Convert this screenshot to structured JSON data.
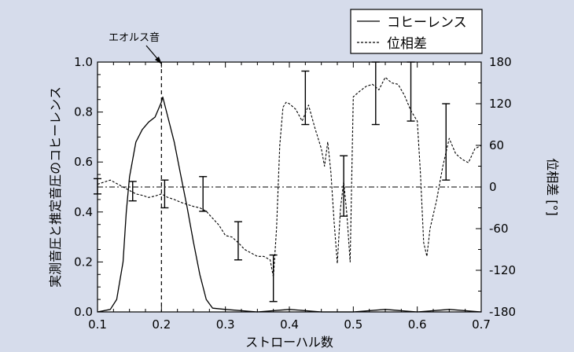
{
  "chart_data": {
    "type": "line",
    "xlabel": "ストローハル数",
    "ylabel": "実測音圧と推定音圧のコヒーレンス",
    "y2label": "位相差 [°]",
    "xlim": [
      0.1,
      0.7
    ],
    "ylim": [
      0.0,
      1.0
    ],
    "y2lim": [
      -180,
      180
    ],
    "xticks": [
      "0.1",
      "0.2",
      "0.3",
      "0.4",
      "0.5",
      "0.6",
      "0.7"
    ],
    "yticks": [
      "0.0",
      "0.2",
      "0.4",
      "0.6",
      "0.8",
      "1.0"
    ],
    "y2ticks": [
      "-180",
      "-120",
      "-60",
      "0",
      "60",
      "120",
      "180"
    ],
    "legend": {
      "position": "top-right",
      "entries": [
        "コヒーレンス",
        "位相差"
      ]
    },
    "annotation": {
      "text": "エオルス音",
      "x": 0.2
    },
    "reference_lines": {
      "vertical_dashed_x": 0.2,
      "horizontal_dashdot_y2": 0
    },
    "series": [
      {
        "name": "コヒーレンス",
        "axis": "left",
        "style": "solid",
        "x": [
          0.1,
          0.12,
          0.13,
          0.14,
          0.145,
          0.15,
          0.16,
          0.17,
          0.18,
          0.19,
          0.2,
          0.202,
          0.21,
          0.22,
          0.23,
          0.24,
          0.25,
          0.26,
          0.27,
          0.28,
          0.3,
          0.35,
          0.4,
          0.45,
          0.5,
          0.55,
          0.6,
          0.65,
          0.7
        ],
        "values": [
          0.0,
          0.01,
          0.05,
          0.2,
          0.4,
          0.54,
          0.68,
          0.73,
          0.76,
          0.78,
          0.84,
          0.86,
          0.78,
          0.68,
          0.55,
          0.42,
          0.28,
          0.15,
          0.05,
          0.015,
          0.01,
          0.0,
          0.01,
          0.0,
          0.0,
          0.01,
          0.0,
          0.01,
          0.0
        ]
      },
      {
        "name": "位相差",
        "axis": "right",
        "style": "dashed",
        "x": [
          0.1,
          0.11,
          0.12,
          0.13,
          0.14,
          0.15,
          0.16,
          0.17,
          0.18,
          0.19,
          0.2,
          0.21,
          0.22,
          0.23,
          0.24,
          0.25,
          0.26,
          0.27,
          0.28,
          0.29,
          0.3,
          0.31,
          0.32,
          0.33,
          0.34,
          0.35,
          0.36,
          0.37,
          0.375,
          0.38,
          0.385,
          0.39,
          0.395,
          0.4,
          0.41,
          0.42,
          0.43,
          0.44,
          0.45,
          0.455,
          0.46,
          0.465,
          0.47,
          0.475,
          0.48,
          0.485,
          0.49,
          0.495,
          0.5,
          0.51,
          0.52,
          0.53,
          0.54,
          0.55,
          0.56,
          0.57,
          0.58,
          0.59,
          0.6,
          0.605,
          0.61,
          0.615,
          0.62,
          0.63,
          0.64,
          0.65,
          0.66,
          0.67,
          0.68,
          0.69,
          0.7
        ],
        "values": [
          4,
          7,
          10,
          5,
          0,
          -5,
          -10,
          -12,
          -15,
          -13,
          -10,
          -15,
          -18,
          -22,
          -25,
          -28,
          -30,
          -35,
          -45,
          -55,
          -70,
          -72,
          -80,
          -90,
          -95,
          -100,
          -100,
          -105,
          -130,
          -60,
          60,
          115,
          122,
          120,
          112,
          95,
          118,
          85,
          55,
          30,
          65,
          20,
          -50,
          -110,
          -30,
          8,
          -40,
          -108,
          130,
          138,
          145,
          148,
          140,
          158,
          150,
          148,
          132,
          110,
          95,
          20,
          -80,
          -100,
          -60,
          -20,
          30,
          70,
          48,
          40,
          35,
          55,
          60
        ]
      }
    ],
    "error_bars": [
      {
        "x": 0.1,
        "low": -10,
        "high": 12,
        "axis": "right"
      },
      {
        "x": 0.155,
        "low": -20,
        "high": 8,
        "axis": "right"
      },
      {
        "x": 0.205,
        "low": -30,
        "high": 10,
        "axis": "right"
      },
      {
        "x": 0.265,
        "low": -35,
        "high": 15,
        "axis": "right"
      },
      {
        "x": 0.32,
        "low": -105,
        "high": -50,
        "axis": "right"
      },
      {
        "x": 0.375,
        "low": -165,
        "high": -98,
        "axis": "right"
      },
      {
        "x": 0.425,
        "low": 90,
        "high": 167,
        "axis": "right"
      },
      {
        "x": 0.485,
        "low": -42,
        "high": 45,
        "axis": "right"
      },
      {
        "x": 0.535,
        "low": 90,
        "high": 180,
        "axis": "right"
      },
      {
        "x": 0.59,
        "low": 95,
        "high": 180,
        "axis": "right"
      },
      {
        "x": 0.645,
        "low": 10,
        "high": 120,
        "axis": "right"
      }
    ]
  }
}
